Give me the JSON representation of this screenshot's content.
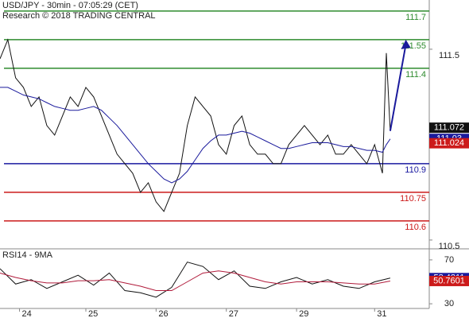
{
  "chart_data": [
    {
      "type": "line",
      "title": "USD/JPY - 30min - 07:05:29 (CET)",
      "subtitle": "Research © 2018 TRADING CENTRAL",
      "x": [
        0,
        2,
        4,
        6,
        8,
        10,
        12,
        14,
        16,
        18,
        20,
        22,
        24,
        26,
        28,
        30,
        32,
        34,
        36,
        38,
        40,
        42,
        44,
        46,
        48,
        50,
        52,
        54,
        56,
        58,
        60,
        62,
        64,
        66,
        68,
        70,
        72,
        74,
        76,
        78,
        80,
        82,
        84,
        86,
        88,
        90,
        92,
        94,
        96,
        98,
        99,
        100
      ],
      "series": [
        {
          "color": "#111111",
          "values": [
            111.45,
            111.55,
            111.35,
            111.3,
            111.2,
            111.25,
            111.1,
            111.05,
            111.15,
            111.25,
            111.2,
            111.3,
            111.25,
            111.15,
            111.05,
            110.95,
            110.9,
            110.85,
            110.75,
            110.8,
            110.7,
            110.65,
            110.75,
            110.85,
            111.1,
            111.25,
            111.2,
            111.15,
            111.0,
            110.95,
            111.1,
            111.15,
            111.0,
            110.95,
            110.95,
            110.9,
            110.9,
            111.0,
            111.05,
            111.1,
            111.05,
            111.0,
            111.05,
            110.95,
            110.95,
            111.0,
            110.95,
            110.9,
            111.0,
            110.85,
            111.48,
            111.072
          ]
        },
        {
          "color": "#1a1a9c",
          "values": [
            111.3,
            111.3,
            111.28,
            111.26,
            111.25,
            111.24,
            111.22,
            111.2,
            111.19,
            111.18,
            111.18,
            111.19,
            111.2,
            111.18,
            111.14,
            111.1,
            111.05,
            111.0,
            110.95,
            110.9,
            110.86,
            110.82,
            110.8,
            110.82,
            110.86,
            110.92,
            110.98,
            111.02,
            111.05,
            111.05,
            111.06,
            111.07,
            111.06,
            111.04,
            111.02,
            111.0,
            110.98,
            110.98,
            110.99,
            111.0,
            111.01,
            111.01,
            111.01,
            111.0,
            110.99,
            110.99,
            110.98,
            110.97,
            110.97,
            110.96,
            111.0,
            111.03
          ]
        }
      ],
      "levels": [
        {
          "value": 111.7,
          "color": "#2e8b2e"
        },
        {
          "value": 111.55,
          "color": "#2e8b2e"
        },
        {
          "value": 111.4,
          "color": "#2e8b2e"
        },
        {
          "value": 110.9,
          "color": "#1a1aa0"
        },
        {
          "value": 110.75,
          "color": "#cc1a1a"
        },
        {
          "value": 110.6,
          "color": "#cc1a1a"
        }
      ],
      "projection": {
        "x": [
          100,
          104
        ],
        "values": [
          111.072,
          111.55
        ]
      },
      "price_tags": [
        {
          "value": 111.072,
          "color": "#111111"
        },
        {
          "value": 111.03,
          "color": "#1a1a9c"
        },
        {
          "value": 111.024,
          "color": "#cc1a1a"
        }
      ],
      "xlim": [
        0,
        110
      ],
      "ylim": [
        110.458,
        111.758
      ],
      "yticks": [
        110.5,
        111.5
      ]
    },
    {
      "type": "line",
      "title": "RSI14 - 9MA",
      "x": [
        0,
        4,
        8,
        12,
        16,
        20,
        24,
        28,
        32,
        36,
        40,
        44,
        48,
        52,
        56,
        60,
        64,
        68,
        72,
        76,
        80,
        84,
        88,
        92,
        96,
        100
      ],
      "series": [
        {
          "color": "#111111",
          "values": [
            62,
            48,
            52,
            44,
            50,
            56,
            47,
            58,
            42,
            40,
            36,
            45,
            68,
            64,
            52,
            60,
            46,
            44,
            50,
            54,
            48,
            52,
            46,
            44,
            50,
            53.4211
          ]
        },
        {
          "color": "#b01a3a",
          "values": [
            58,
            54,
            51,
            49,
            49,
            51,
            51,
            52,
            49,
            46,
            42,
            42,
            50,
            58,
            60,
            58,
            54,
            50,
            48,
            50,
            50,
            50,
            49,
            48,
            48,
            50.7601
          ]
        }
      ],
      "price_tags": [
        {
          "value": 53.4211,
          "color": "#1a1a9c"
        },
        {
          "value": 50.7601,
          "color": "#cc1a1a"
        }
      ],
      "xlim": [
        0,
        110
      ],
      "ylim": [
        25,
        75
      ],
      "yticks": [
        30,
        50,
        70
      ],
      "xticks": [
        {
          "value": 5,
          "label": "24"
        },
        {
          "value": 22,
          "label": "25"
        },
        {
          "value": 40,
          "label": "26"
        },
        {
          "value": 58,
          "label": "27"
        },
        {
          "value": 76,
          "label": "29"
        },
        {
          "value": 96,
          "label": "31"
        }
      ]
    }
  ]
}
